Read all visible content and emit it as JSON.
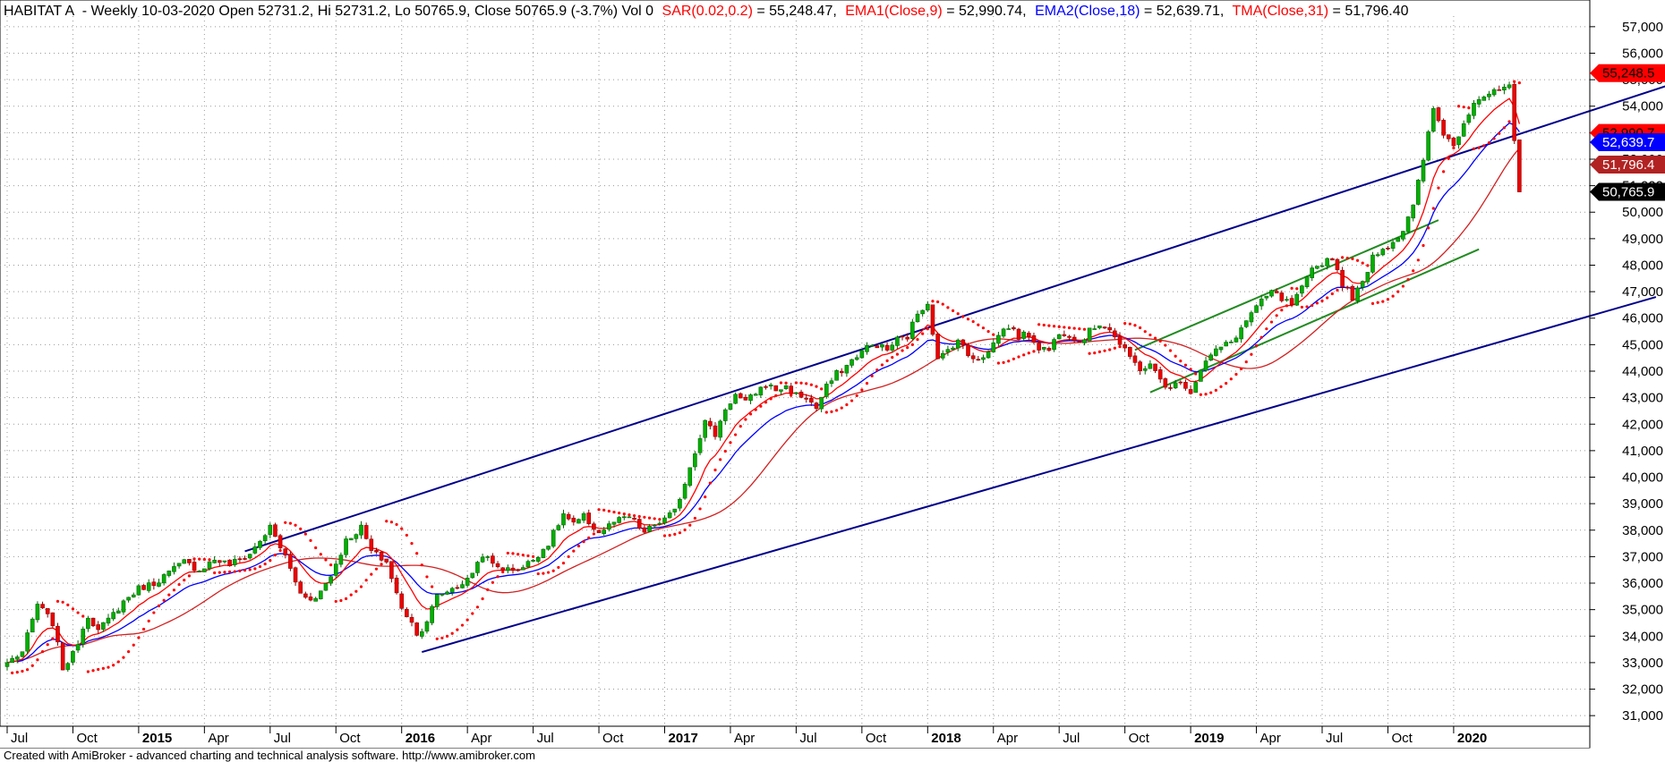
{
  "header": {
    "symbol": "HABITAT A",
    "ohlc": "- Weekly 10-03-2020 Open 52731.2, Hi 52731.2, Lo 50765.9, Close 50765.9 (-3.7%) Vol 0",
    "sar": {
      "label": "SAR(0.02,0.2)",
      "value": "55,248.47",
      "color": "#ff0000"
    },
    "ema1": {
      "label": "EMA1(Close,9)",
      "value": "52,990.74",
      "color": "#ff0000"
    },
    "ema2": {
      "label": "EMA2(Close,18)",
      "value": "52,639.71",
      "color": "#0000ff"
    },
    "tma": {
      "label": "TMA(Close,31)",
      "value": "51,796.40",
      "color": "#ff0000"
    }
  },
  "footer": {
    "text": "Created with AmiBroker - advanced charting and technical analysis software. http://www.amibroker.com"
  },
  "price_tags": [
    {
      "value": 55248.5,
      "text": "55,248.5",
      "bg": "#ff0000",
      "fg": "#000000"
    },
    {
      "value": 52990.7,
      "text": "52,990.7",
      "bg": "#ff0000",
      "fg": "#000000"
    },
    {
      "value": 52639.7,
      "text": "52,639.7",
      "bg": "#0000ff",
      "fg": "#ffffff"
    },
    {
      "value": 51796.4,
      "text": "51,796.4",
      "bg": "#b22222",
      "fg": "#ffffff"
    },
    {
      "value": 50765.9,
      "text": "50,765.9",
      "bg": "#000000",
      "fg": "#ffffff"
    }
  ],
  "chart_data": {
    "type": "candlestick",
    "interval": "weekly",
    "y_range": [
      30600,
      57400
    ],
    "y_ticks": [
      31000,
      32000,
      33000,
      34000,
      35000,
      36000,
      37000,
      38000,
      39000,
      40000,
      41000,
      42000,
      43000,
      44000,
      45000,
      46000,
      47000,
      48000,
      49000,
      50000,
      51000,
      52000,
      53000,
      54000,
      55000,
      56000,
      57000
    ],
    "y_tick_labels": [
      "31,000",
      "32,000",
      "33,000",
      "34,000",
      "35,000",
      "36,000",
      "37,000",
      "38,000",
      "39,000",
      "40,000",
      "41,000",
      "42,000",
      "43,000",
      "44,000",
      "45,000",
      "46,000",
      "47,000",
      "48,000",
      "49,000",
      "50,000",
      "51,000",
      "52,000",
      "53,000",
      "54,000",
      "55,000",
      "56,000",
      "57,000"
    ],
    "x_ticks": [
      "Jul",
      "Oct",
      "2015",
      "Apr",
      "Jul",
      "Oct",
      "2016",
      "Apr",
      "Jul",
      "Oct",
      "2017",
      "Apr",
      "Jul",
      "Oct",
      "2018",
      "Apr",
      "Jul",
      "Oct",
      "2019",
      "Apr",
      "Jul",
      "Oct",
      "2020"
    ],
    "x_tick_index": [
      0,
      13,
      26,
      39,
      52,
      65,
      78,
      91,
      104,
      117,
      130,
      143,
      156,
      169,
      182,
      195,
      208,
      221,
      234,
      247,
      260,
      273,
      286
    ],
    "x_bold": [
      "2015",
      "2016",
      "2017",
      "2018",
      "2019",
      "2020"
    ],
    "anchors": [
      [
        0,
        33000
      ],
      [
        3,
        33400
      ],
      [
        6,
        35200
      ],
      [
        9,
        34500
      ],
      [
        11,
        32800
      ],
      [
        13,
        33300
      ],
      [
        16,
        34800
      ],
      [
        18,
        34200
      ],
      [
        20,
        34600
      ],
      [
        23,
        35300
      ],
      [
        26,
        35800
      ],
      [
        29,
        36000
      ],
      [
        32,
        36400
      ],
      [
        35,
        36800
      ],
      [
        38,
        36500
      ],
      [
        41,
        36900
      ],
      [
        44,
        36700
      ],
      [
        48,
        37100
      ],
      [
        52,
        38100
      ],
      [
        55,
        37000
      ],
      [
        58,
        35600
      ],
      [
        61,
        35400
      ],
      [
        64,
        36300
      ],
      [
        67,
        37600
      ],
      [
        70,
        38100
      ],
      [
        72,
        37200
      ],
      [
        75,
        36800
      ],
      [
        78,
        35000
      ],
      [
        80,
        34600
      ],
      [
        81,
        34000
      ],
      [
        83,
        34600
      ],
      [
        85,
        35500
      ],
      [
        88,
        35800
      ],
      [
        91,
        36100
      ],
      [
        94,
        37100
      ],
      [
        96,
        36700
      ],
      [
        99,
        36500
      ],
      [
        102,
        36600
      ],
      [
        104,
        36900
      ],
      [
        107,
        37500
      ],
      [
        110,
        38600
      ],
      [
        112,
        38200
      ],
      [
        114,
        38500
      ],
      [
        117,
        37900
      ],
      [
        120,
        38300
      ],
      [
        123,
        38500
      ],
      [
        126,
        37900
      ],
      [
        128,
        38200
      ],
      [
        130,
        38400
      ],
      [
        132,
        38700
      ],
      [
        134,
        39800
      ],
      [
        136,
        41000
      ],
      [
        138,
        42100
      ],
      [
        140,
        41600
      ],
      [
        142,
        42600
      ],
      [
        144,
        43100
      ],
      [
        146,
        42800
      ],
      [
        148,
        43200
      ],
      [
        150,
        43500
      ],
      [
        152,
        43300
      ],
      [
        154,
        43400
      ],
      [
        156,
        43100
      ],
      [
        158,
        43000
      ],
      [
        160,
        42600
      ],
      [
        162,
        43400
      ],
      [
        164,
        43900
      ],
      [
        166,
        44200
      ],
      [
        168,
        44600
      ],
      [
        170,
        44900
      ],
      [
        172,
        45000
      ],
      [
        174,
        44800
      ],
      [
        176,
        45200
      ],
      [
        178,
        45300
      ],
      [
        180,
        46200
      ],
      [
        182,
        46600
      ],
      [
        184,
        44400
      ],
      [
        186,
        44800
      ],
      [
        188,
        45200
      ],
      [
        190,
        44600
      ],
      [
        192,
        44500
      ],
      [
        194,
        44700
      ],
      [
        196,
        45400
      ],
      [
        198,
        45700
      ],
      [
        200,
        45300
      ],
      [
        202,
        45400
      ],
      [
        204,
        44900
      ],
      [
        206,
        44800
      ],
      [
        208,
        45500
      ],
      [
        210,
        45400
      ],
      [
        212,
        45100
      ],
      [
        214,
        45500
      ],
      [
        216,
        45800
      ],
      [
        218,
        45600
      ],
      [
        220,
        45000
      ],
      [
        222,
        44500
      ],
      [
        224,
        44100
      ],
      [
        226,
        44200
      ],
      [
        228,
        43700
      ],
      [
        230,
        43300
      ],
      [
        232,
        43700
      ],
      [
        234,
        43200
      ],
      [
        236,
        44100
      ],
      [
        238,
        44600
      ],
      [
        240,
        44900
      ],
      [
        242,
        45100
      ],
      [
        244,
        45600
      ],
      [
        246,
        46200
      ],
      [
        248,
        46600
      ],
      [
        250,
        47000
      ],
      [
        252,
        46700
      ],
      [
        254,
        46500
      ],
      [
        256,
        47100
      ],
      [
        258,
        47800
      ],
      [
        260,
        48100
      ],
      [
        262,
        48300
      ],
      [
        264,
        47300
      ],
      [
        266,
        46800
      ],
      [
        268,
        47300
      ],
      [
        270,
        48400
      ],
      [
        272,
        48600
      ],
      [
        274,
        48900
      ],
      [
        276,
        49300
      ],
      [
        278,
        50200
      ],
      [
        280,
        52000
      ],
      [
        282,
        53900
      ],
      [
        284,
        53000
      ],
      [
        286,
        52500
      ],
      [
        288,
        53400
      ],
      [
        290,
        54200
      ],
      [
        292,
        54400
      ],
      [
        294,
        54500
      ],
      [
        296,
        54700
      ],
      [
        297,
        54700
      ],
      [
        298,
        52700
      ],
      [
        299,
        50800
      ]
    ],
    "ohlc_last": {
      "open": 52731.2,
      "high": 52731.2,
      "low": 50765.9,
      "close": 50765.9,
      "change_pct": -3.7,
      "volume": 0
    },
    "indicators": {
      "sar": {
        "label": "SAR(0.02,0.2)",
        "last": 55248.47
      },
      "ema1": {
        "label": "EMA1(Close,9)",
        "period": 9,
        "last": 52990.74
      },
      "ema2": {
        "label": "EMA2(Close,18)",
        "period": 18,
        "last": 52639.71
      },
      "tma": {
        "label": "TMA(Close,31)",
        "period": 31,
        "last": 51796.4
      }
    },
    "trendlines": [
      {
        "color": "#00008b",
        "from": [
          47,
          37200
        ],
        "to": [
          351,
          56200
        ]
      },
      {
        "color": "#00008b",
        "from": [
          82,
          33400
        ],
        "to": [
          326,
          46800
        ]
      },
      {
        "color": "#228b22",
        "from": [
          223,
          44800
        ],
        "to": [
          283,
          49700
        ]
      },
      {
        "color": "#228b22",
        "from": [
          226,
          43200
        ],
        "to": [
          291,
          48600
        ]
      }
    ]
  }
}
